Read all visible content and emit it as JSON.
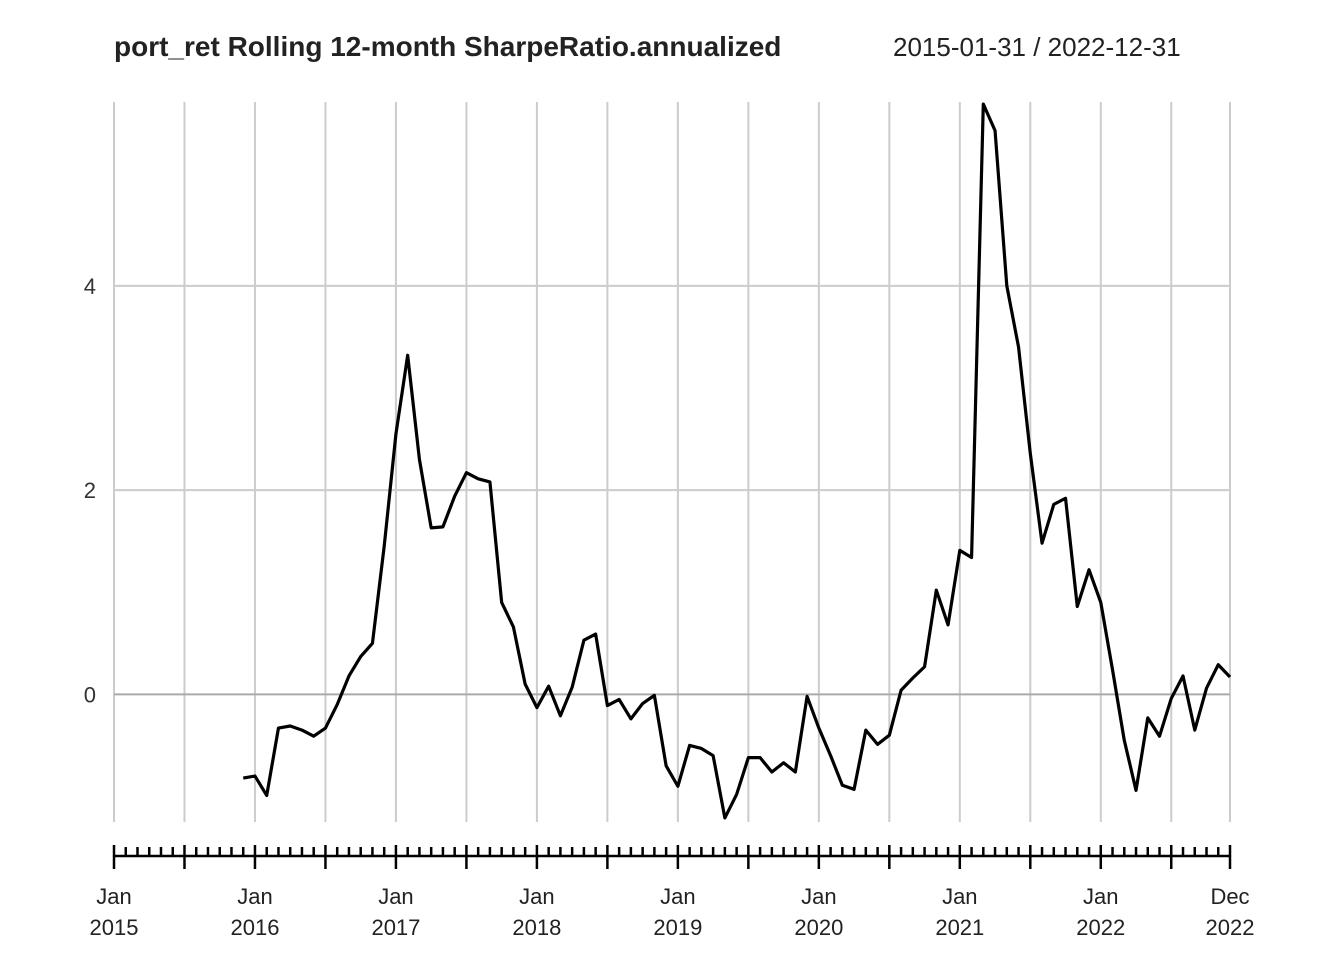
{
  "chart_data": {
    "type": "line",
    "title": "port_ret Rolling 12-month SharpeRatio.annualized",
    "date_range": "2015-01-31 / 2022-12-31",
    "xlabel": "",
    "ylabel": "",
    "x_start": "2015-01",
    "x_end": "2022-12",
    "ylim": [
      -1.25,
      5.8
    ],
    "y_ticks": [
      {
        "value": 0,
        "label": "0"
      },
      {
        "value": 2,
        "label": "2"
      },
      {
        "value": 4,
        "label": "4"
      }
    ],
    "x_ticks": [
      {
        "date": "2015-01",
        "line1": "Jan",
        "line2": "2015"
      },
      {
        "date": "2016-01",
        "line1": "Jan",
        "line2": "2016"
      },
      {
        "date": "2017-01",
        "line1": "Jan",
        "line2": "2017"
      },
      {
        "date": "2018-01",
        "line1": "Jan",
        "line2": "2018"
      },
      {
        "date": "2019-01",
        "line1": "Jan",
        "line2": "2019"
      },
      {
        "date": "2020-01",
        "line1": "Jan",
        "line2": "2020"
      },
      {
        "date": "2021-01",
        "line1": "Jan",
        "line2": "2021"
      },
      {
        "date": "2022-01",
        "line1": "Jan",
        "line2": "2022"
      },
      {
        "date": "2022-12",
        "line1": "Dec",
        "line2": "2022"
      }
    ],
    "grid": true,
    "series": [
      {
        "start": "2015-12",
        "values": [
          -0.82,
          -0.8,
          -0.99,
          -0.33,
          -0.31,
          -0.35,
          -0.41,
          -0.33,
          -0.1,
          0.18,
          0.37,
          0.5,
          1.45,
          2.55,
          3.32,
          2.3,
          1.63,
          1.64,
          1.94,
          2.17,
          2.11,
          2.08,
          0.9,
          0.66,
          0.1,
          -0.13,
          0.08,
          -0.21,
          0.07,
          0.53,
          0.59,
          -0.11,
          -0.05,
          -0.24,
          -0.09,
          -0.01,
          -0.7,
          -0.9,
          -0.5,
          -0.53,
          -0.6,
          -1.21,
          -0.98,
          -0.62,
          -0.62,
          -0.76,
          -0.67,
          -0.76,
          -0.02,
          -0.33,
          -0.6,
          -0.89,
          -0.93,
          -0.35,
          -0.49,
          -0.4,
          0.04,
          0.16,
          0.27,
          1.02,
          0.68,
          1.41,
          1.34,
          5.78,
          5.52,
          4.0,
          3.4,
          2.36,
          1.48,
          1.86,
          1.92,
          0.86,
          1.22,
          0.9,
          0.24,
          -0.45,
          -0.94,
          -0.23,
          -0.41,
          -0.04,
          0.18,
          -0.35,
          0.06,
          0.29,
          0.17
        ]
      }
    ]
  }
}
